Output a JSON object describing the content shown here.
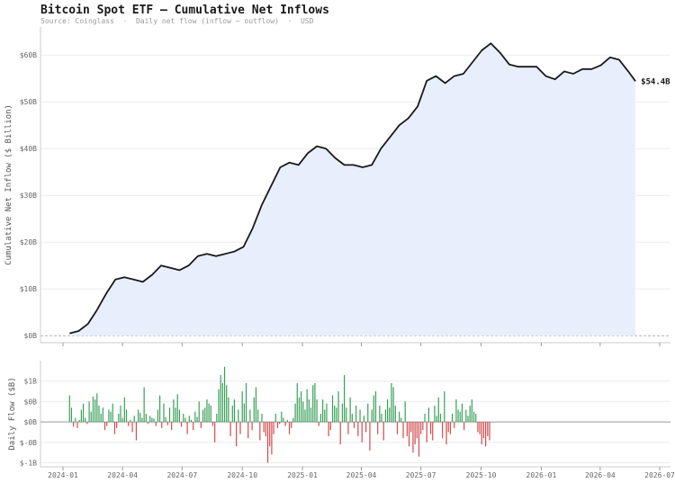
{
  "header": {
    "title": "Bitcoin Spot ETF — Cumulative Net Inflows",
    "subtitle": "Source: Coinglass  ·  Daily net flow (inflow − outflow)  ·  USD"
  },
  "chart_data": [
    {
      "type": "area",
      "ylabel": "Cumulative Net Inflow ($ Billion)",
      "ylim": [
        -1.5,
        66
      ],
      "yticks": [
        0,
        10,
        20,
        30,
        40,
        50,
        60
      ],
      "ytick_labels": [
        "$0B",
        "$10B",
        "$20B",
        "$30B",
        "$40B",
        "$50B",
        "$60B"
      ],
      "end_label": "$54.4B",
      "grid": true,
      "x": [
        "2024-01-11",
        "2024-01-25",
        "2024-02-08",
        "2024-02-22",
        "2024-03-07",
        "2024-03-21",
        "2024-04-04",
        "2024-04-18",
        "2024-05-02",
        "2024-05-16",
        "2024-05-30",
        "2024-06-13",
        "2024-06-27",
        "2024-07-11",
        "2024-07-25",
        "2024-08-08",
        "2024-08-22",
        "2024-09-05",
        "2024-09-19",
        "2024-10-03",
        "2024-10-17",
        "2024-10-31",
        "2024-11-14",
        "2024-11-28",
        "2024-12-12",
        "2024-12-26",
        "2025-01-09",
        "2025-01-23",
        "2025-02-06",
        "2025-02-20",
        "2025-03-06",
        "2025-03-20",
        "2025-04-03",
        "2025-04-17",
        "2025-05-01",
        "2025-05-15",
        "2025-05-29",
        "2025-06-12",
        "2025-06-26",
        "2025-07-10",
        "2025-07-24",
        "2025-08-07",
        "2025-08-21",
        "2025-09-04",
        "2025-09-18",
        "2025-10-02",
        "2025-10-16",
        "2025-10-30",
        "2025-11-13",
        "2025-11-27",
        "2025-12-11",
        "2025-12-25",
        "2026-01-08",
        "2026-01-22",
        "2026-02-05",
        "2026-02-19",
        "2026-03-05",
        "2026-03-19",
        "2026-04-02",
        "2026-04-16",
        "2026-04-30",
        "2026-05-14",
        "2026-05-25"
      ],
      "series": [
        {
          "values": [
            0.5,
            1.0,
            2.5,
            5.5,
            9.0,
            12.0,
            12.5,
            12.0,
            11.5,
            13.0,
            15.0,
            14.5,
            14.0,
            15.0,
            17.0,
            17.5,
            17.0,
            17.5,
            18.0,
            19.0,
            23.0,
            28.0,
            32.0,
            36.0,
            37.0,
            36.5,
            39.0,
            40.5,
            40.0,
            38.0,
            36.5,
            36.5,
            36.0,
            36.5,
            40.0,
            42.5,
            45.0,
            46.5,
            49.0,
            54.5,
            55.5,
            54.0,
            55.5,
            56.0,
            58.5,
            61.0,
            62.5,
            60.5,
            58.0,
            57.5,
            57.5,
            57.5,
            55.5,
            54.8,
            56.5,
            56.0,
            57.0,
            57.0,
            57.8,
            59.5,
            59.0,
            56.5,
            54.4
          ]
        }
      ]
    },
    {
      "type": "bar",
      "ylabel": "Daily Flow ($B)",
      "ylim": [
        -1.1,
        1.5
      ],
      "yticks": [
        -1,
        -0.5,
        0,
        0.5,
        1
      ],
      "ytick_labels": [
        "$-1B",
        "$-0B",
        "$0B",
        "$0B",
        "$1B"
      ],
      "xticks": [
        "2024-01",
        "2024-04",
        "2024-07",
        "2024-10",
        "2025-01",
        "2025-04",
        "2025-07",
        "2025-10",
        "2026-01",
        "2026-04",
        "2026-07"
      ],
      "colors": {
        "positive": "#3aa05a",
        "negative": "#d24b4b",
        "line": "#1a1a1a",
        "fill": "#e8eefc"
      },
      "start_date": "2024-01-11",
      "interval_days": 3,
      "values": [
        0.65,
        0.35,
        -0.12,
        0.1,
        -0.15,
        0.05,
        0.3,
        0.45,
        0.1,
        -0.05,
        0.5,
        0.25,
        0.62,
        0.55,
        0.7,
        0.4,
        0.2,
        0.35,
        -0.2,
        -0.1,
        0.3,
        0.25,
        0.45,
        -0.3,
        -0.15,
        0.2,
        0.4,
        0.1,
        0.6,
        0.3,
        -0.1,
        0.05,
        -0.25,
        0.15,
        -0.45,
        0.3,
        0.22,
        0.1,
        0.85,
        0.2,
        -0.05,
        0.15,
        0.1,
        0.08,
        -0.1,
        0.3,
        0.65,
        -0.15,
        0.45,
        0.12,
        -0.08,
        0.35,
        -0.2,
        0.55,
        0.35,
        0.68,
        0.3,
        -0.12,
        0.2,
        0.1,
        -0.3,
        0.15,
        0.05,
        -0.2,
        0.25,
        0.12,
        0.5,
        -0.15,
        0.3,
        0.35,
        0.55,
        0.45,
        0.4,
        -0.1,
        -0.5,
        0.2,
        0.8,
        1.15,
        0.95,
        1.35,
        0.9,
        0.6,
        -0.35,
        0.4,
        0.55,
        -0.6,
        0.3,
        -0.3,
        0.75,
        0.45,
        0.95,
        -0.4,
        0.3,
        -0.2,
        0.6,
        0.85,
        0.3,
        -0.45,
        0.2,
        -0.25,
        -0.35,
        -1.0,
        -0.6,
        -0.8,
        -0.3,
        0.2,
        -0.15,
        -0.05,
        0.25,
        0.1,
        -0.1,
        0.05,
        -0.3,
        -0.15,
        0.1,
        0.45,
        0.95,
        0.6,
        0.75,
        0.5,
        0.3,
        0.8,
        0.55,
        0.35,
        0.9,
        0.95,
        0.55,
        -0.1,
        0.2,
        0.55,
        0.3,
        0.45,
        -0.35,
        -0.2,
        0.65,
        0.4,
        0.35,
        0.75,
        -0.55,
        0.45,
        1.15,
        0.35,
        -0.3,
        0.6,
        0.2,
        -0.15,
        0.4,
        -0.35,
        0.3,
        -0.5,
        0.15,
        -0.25,
        0.45,
        -0.7,
        0.3,
        0.65,
        0.75,
        -0.3,
        0.4,
        0.2,
        -0.45,
        0.3,
        0.55,
        0.35,
        0.95,
        0.85,
        0.4,
        -0.3,
        0.25,
        0.1,
        -0.4,
        0.5,
        -0.35,
        -0.6,
        -0.25,
        -0.75,
        -0.55,
        -0.4,
        -0.85,
        -0.3,
        -0.2,
        0.2,
        -0.5,
        0.35,
        -0.3,
        -0.45,
        0.4,
        0.15,
        0.6,
        0.2,
        -0.4,
        0.75,
        -0.55,
        -0.25,
        -0.3,
        0.2,
        -0.15,
        0.55,
        0.3,
        0.25,
        0.45,
        -0.2,
        0.3,
        0.15,
        0.4,
        0.55,
        0.25,
        0.2,
        -0.25,
        -0.3,
        -0.55,
        -0.4,
        -0.6,
        -0.35,
        -0.45
      ]
    }
  ]
}
